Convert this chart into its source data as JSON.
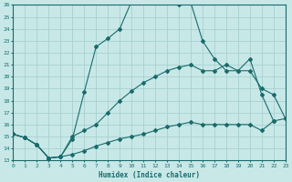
{
  "xlabel": "Humidex (Indice chaleur)",
  "bg_color": "#c8e8e8",
  "grid_color": "#a8d0d0",
  "line_color": "#1a6b6b",
  "xlim": [
    0,
    23
  ],
  "ylim": [
    13,
    26
  ],
  "xticks": [
    0,
    1,
    2,
    3,
    4,
    5,
    6,
    7,
    8,
    9,
    10,
    11,
    12,
    13,
    14,
    15,
    16,
    17,
    18,
    19,
    20,
    21,
    22,
    23
  ],
  "yticks": [
    13,
    14,
    15,
    16,
    17,
    18,
    19,
    20,
    21,
    22,
    23,
    24,
    25,
    26
  ],
  "line1_x": [
    0,
    1,
    2,
    3,
    4,
    5,
    6,
    7,
    8,
    9,
    10,
    11,
    12,
    13,
    14,
    15,
    16,
    17,
    18,
    19,
    20,
    21,
    22,
    23
  ],
  "line1_y": [
    15.2,
    14.9,
    14.3,
    13.2,
    13.3,
    14.8,
    18.7,
    22.5,
    23.2,
    24.0,
    26.3,
    26.5,
    26.5,
    26.2,
    26.0,
    26.2,
    23.0,
    21.5,
    20.5,
    20.5,
    21.5,
    18.5,
    16.3,
    null
  ],
  "line2_x": [
    0,
    1,
    2,
    3,
    4,
    5,
    6,
    7,
    8,
    9,
    10,
    11,
    12,
    13,
    14,
    15,
    16,
    17,
    18,
    19,
    20,
    21,
    22,
    23
  ],
  "line2_y": [
    15.2,
    14.9,
    14.3,
    13.2,
    13.3,
    15.0,
    15.5,
    16.0,
    17.0,
    18.0,
    18.8,
    19.5,
    20.0,
    20.5,
    20.8,
    21.0,
    20.5,
    20.5,
    21.0,
    20.5,
    20.5,
    19.0,
    18.5,
    16.5
  ],
  "line3_x": [
    0,
    1,
    2,
    3,
    4,
    5,
    6,
    7,
    8,
    9,
    10,
    11,
    12,
    13,
    14,
    15,
    16,
    17,
    18,
    19,
    20,
    21,
    22,
    23
  ],
  "line3_y": [
    15.2,
    14.9,
    14.3,
    13.2,
    13.3,
    13.5,
    13.8,
    14.2,
    14.5,
    14.8,
    15.0,
    15.2,
    15.5,
    15.8,
    16.0,
    16.2,
    16.0,
    16.0,
    16.0,
    16.0,
    16.0,
    15.5,
    16.3,
    16.5
  ]
}
